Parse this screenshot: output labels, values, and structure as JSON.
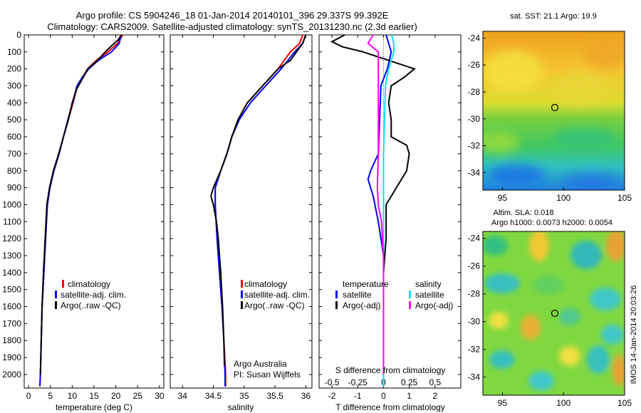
{
  "header": {
    "line1": "Argo profile: CS 5904246_18 01-Jan-2014 20140101_396 29.337S 99.392E",
    "line2": "Climatology: CARS2009. Satellite-adjusted climatology: synTS_20131230.nc (2.3d earlier)"
  },
  "colors": {
    "climatology": "#ff0000",
    "satellite": "#0000ff",
    "argo": "#000000",
    "sal_satellite": "#00e5ff",
    "sal_argo": "#ff00ff"
  },
  "chart_data": [
    {
      "id": "temperature",
      "type": "line",
      "xlabel": "temperature (deg C)",
      "ylabel": "",
      "xlim": [
        -1,
        31
      ],
      "ylim": [
        2080,
        0
      ],
      "xticks": [
        0,
        5,
        10,
        15,
        20,
        25,
        30
      ],
      "yticks": [
        0,
        100,
        200,
        300,
        400,
        500,
        600,
        700,
        800,
        900,
        1000,
        1100,
        1200,
        1300,
        1400,
        1500,
        1600,
        1700,
        1800,
        1900,
        2000
      ],
      "legend": {
        "position": "middle-center",
        "items": [
          "climatology",
          "satellite-adj. clim.",
          "Argo(..raw -QC)"
        ]
      },
      "series": [
        {
          "name": "climatology",
          "color": "#ff0000",
          "points": [
            [
              21.6,
              0
            ],
            [
              20.4,
              50
            ],
            [
              18.2,
              100
            ],
            [
              15.5,
              150
            ],
            [
              13.5,
              200
            ],
            [
              12.4,
              250
            ],
            [
              11.2,
              300
            ],
            [
              10.2,
              400
            ],
            [
              9.1,
              500
            ],
            [
              8.0,
              600
            ],
            [
              7.0,
              700
            ],
            [
              5.8,
              800
            ],
            [
              4.9,
              900
            ],
            [
              4.3,
              1000
            ],
            [
              3.9,
              1200
            ],
            [
              3.5,
              1400
            ],
            [
              3.1,
              1600
            ],
            [
              2.9,
              1800
            ],
            [
              2.7,
              2000
            ],
            [
              2.6,
              2070
            ]
          ]
        },
        {
          "name": "satellite-adj. clim.",
          "color": "#0000ff",
          "points": [
            [
              21.2,
              0
            ],
            [
              20.8,
              50
            ],
            [
              19.0,
              100
            ],
            [
              16.0,
              150
            ],
            [
              13.8,
              200
            ],
            [
              12.3,
              250
            ],
            [
              11.1,
              300
            ],
            [
              10.1,
              400
            ],
            [
              9.0,
              500
            ],
            [
              8.0,
              600
            ],
            [
              7.0,
              700
            ],
            [
              5.8,
              800
            ],
            [
              4.9,
              900
            ],
            [
              4.3,
              1000
            ],
            [
              3.9,
              1200
            ],
            [
              3.5,
              1400
            ],
            [
              3.1,
              1600
            ],
            [
              2.9,
              1800
            ],
            [
              2.7,
              2000
            ],
            [
              2.6,
              2070
            ]
          ]
        },
        {
          "name": "Argo(..raw -QC)",
          "color": "#000000",
          "points": [
            [
              21.3,
              0
            ],
            [
              20.5,
              30
            ],
            [
              19.2,
              60
            ],
            [
              17.6,
              100
            ],
            [
              15.8,
              150
            ],
            [
              13.6,
              200
            ],
            [
              12.3,
              260
            ],
            [
              11.0,
              320
            ],
            [
              10.0,
              400
            ],
            [
              9.1,
              500
            ],
            [
              8.0,
              600
            ],
            [
              6.9,
              700
            ],
            [
              5.7,
              800
            ],
            [
              4.8,
              900
            ],
            [
              4.2,
              1000
            ],
            [
              3.8,
              1200
            ],
            [
              3.4,
              1400
            ],
            [
              3.1,
              1600
            ],
            [
              2.9,
              1800
            ],
            [
              2.7,
              2000
            ]
          ]
        }
      ]
    },
    {
      "id": "salinity",
      "type": "line",
      "xlabel": "salinity",
      "xlim": [
        33.8,
        36.1
      ],
      "ylim": [
        2080,
        0
      ],
      "xticks": [
        34,
        34.5,
        35,
        35.5,
        36
      ],
      "legend": {
        "position": "middle-center",
        "items": [
          "climatology",
          "satellite-adj. clim.",
          "Argo(..raw -QC)"
        ]
      },
      "annotations": [
        "Argo Australia",
        "PI: Susan Wijffels"
      ],
      "series": [
        {
          "name": "climatology",
          "color": "#ff0000",
          "points": [
            [
              35.95,
              0
            ],
            [
              35.9,
              50
            ],
            [
              35.75,
              100
            ],
            [
              35.55,
              200
            ],
            [
              35.3,
              300
            ],
            [
              35.05,
              400
            ],
            [
              34.9,
              500
            ],
            [
              34.8,
              600
            ],
            [
              34.72,
              700
            ],
            [
              34.62,
              800
            ],
            [
              34.53,
              900
            ],
            [
              34.53,
              1000
            ],
            [
              34.56,
              1200
            ],
            [
              34.6,
              1400
            ],
            [
              34.64,
              1600
            ],
            [
              34.67,
              1800
            ],
            [
              34.7,
              2000
            ],
            [
              34.7,
              2070
            ]
          ]
        },
        {
          "name": "satellite-adj. clim.",
          "color": "#0000ff",
          "points": [
            [
              36.0,
              0
            ],
            [
              35.95,
              50
            ],
            [
              35.82,
              100
            ],
            [
              35.6,
              200
            ],
            [
              35.35,
              300
            ],
            [
              35.1,
              400
            ],
            [
              34.92,
              500
            ],
            [
              34.8,
              600
            ],
            [
              34.72,
              700
            ],
            [
              34.62,
              800
            ],
            [
              34.53,
              900
            ],
            [
              34.53,
              1000
            ],
            [
              34.56,
              1200
            ],
            [
              34.6,
              1400
            ],
            [
              34.64,
              1600
            ],
            [
              34.67,
              1800
            ],
            [
              34.69,
              2000
            ],
            [
              34.69,
              2070
            ]
          ]
        },
        {
          "name": "Argo(..raw -QC)",
          "color": "#000000",
          "points": [
            [
              36.0,
              0
            ],
            [
              35.95,
              50
            ],
            [
              35.85,
              100
            ],
            [
              35.75,
              150
            ],
            [
              35.55,
              200
            ],
            [
              35.3,
              300
            ],
            [
              35.05,
              400
            ],
            [
              34.9,
              500
            ],
            [
              34.8,
              600
            ],
            [
              34.72,
              700
            ],
            [
              34.62,
              800
            ],
            [
              34.5,
              900
            ],
            [
              34.46,
              950
            ],
            [
              34.5,
              1000
            ],
            [
              34.55,
              1100
            ],
            [
              34.58,
              1200
            ],
            [
              34.62,
              1400
            ],
            [
              34.65,
              1600
            ],
            [
              34.67,
              1800
            ],
            [
              34.68,
              1950
            ]
          ]
        }
      ]
    },
    {
      "id": "difference",
      "type": "line",
      "xlabel": "T difference from climatology",
      "xlabel2": "S difference from climatology",
      "xlim": [
        -2.5,
        3
      ],
      "ylim": [
        2080,
        0
      ],
      "xticks": [
        -2,
        -1,
        0,
        1,
        2
      ],
      "xticks_s": [
        -0.5,
        -0.25,
        0,
        0.25,
        0.5
      ],
      "legend_temperature": {
        "title": "temperature",
        "items": [
          "satellite",
          "Argo(-adj)"
        ]
      },
      "legend_salinity": {
        "title": "salinity",
        "items": [
          "satellite",
          "Argo(-adj)"
        ]
      },
      "series": [
        {
          "name": "temperature satellite",
          "color": "#0000ff",
          "points": [
            [
              0.1,
              0
            ],
            [
              0.2,
              50
            ],
            [
              0.3,
              100
            ],
            [
              0.15,
              200
            ],
            [
              -0.1,
              300
            ],
            [
              -0.15,
              500
            ],
            [
              -0.2,
              700
            ],
            [
              -0.5,
              800
            ],
            [
              -0.6,
              850
            ],
            [
              -0.4,
              950
            ],
            [
              -0.2,
              1100
            ],
            [
              0,
              1300
            ],
            [
              0,
              2070
            ]
          ]
        },
        {
          "name": "temperature Argo(-adj)",
          "color": "#000000",
          "points": [
            [
              -1.5,
              0
            ],
            [
              -2.0,
              40
            ],
            [
              -1.6,
              70
            ],
            [
              -0.8,
              100
            ],
            [
              0.2,
              150
            ],
            [
              1.2,
              200
            ],
            [
              0.8,
              250
            ],
            [
              0.3,
              300
            ],
            [
              0.2,
              400
            ],
            [
              0.3,
              500
            ],
            [
              0.3,
              600
            ],
            [
              0.9,
              650
            ],
            [
              1.0,
              700
            ],
            [
              0.9,
              800
            ],
            [
              0.5,
              900
            ],
            [
              0.1,
              1000
            ],
            [
              0.1,
              1200
            ],
            [
              0,
              1400
            ],
            [
              0,
              2000
            ]
          ]
        },
        {
          "name": "salinity satellite",
          "color": "#00e5ff",
          "points": [
            [
              0.08,
              0
            ],
            [
              0.1,
              50
            ],
            [
              0.1,
              100
            ],
            [
              0.05,
              200
            ],
            [
              0.02,
              300
            ],
            [
              0.01,
              500
            ],
            [
              0,
              700
            ],
            [
              0,
              900
            ],
            [
              0,
              1100
            ],
            [
              0,
              2070
            ]
          ]
        },
        {
          "name": "salinity Argo(-adj)",
          "color": "#ff00ff",
          "points": [
            [
              -0.1,
              0
            ],
            [
              -0.15,
              50
            ],
            [
              -0.05,
              100
            ],
            [
              -0.05,
              300
            ],
            [
              -0.05,
              500
            ],
            [
              -0.05,
              700
            ],
            [
              -0.06,
              900
            ],
            [
              -0.05,
              1000
            ],
            [
              -0.02,
              1100
            ],
            [
              0,
              1300
            ],
            [
              0,
              2000
            ]
          ]
        }
      ]
    },
    {
      "id": "sst_map",
      "type": "heatmap",
      "title": "sat. SST: 21.1 Argo: 19.9",
      "xticks": [
        95,
        100,
        105
      ],
      "yticks": [
        -24,
        -26,
        -28,
        -30,
        -32,
        -34
      ],
      "xlim": [
        93.4,
        105
      ],
      "ylim": [
        -35.3,
        -23.5
      ],
      "marker": {
        "lon": 99.392,
        "lat": -29.337
      }
    },
    {
      "id": "sla_map",
      "type": "heatmap",
      "title": "Altim. SLA: 0.018",
      "subtitle": "Argo h1000: 0.0073 h2000: 0.0054",
      "xticks": [
        95,
        100,
        105
      ],
      "yticks": [
        -24,
        -26,
        -28,
        -30,
        -32,
        -34
      ],
      "xlim": [
        93.4,
        105
      ],
      "ylim": [
        -35.3,
        -23.5
      ],
      "marker": {
        "lon": 99.392,
        "lat": -29.337
      }
    }
  ],
  "footer": {
    "stamp": "IMOS 14-Jan-2014 20:03:26"
  }
}
